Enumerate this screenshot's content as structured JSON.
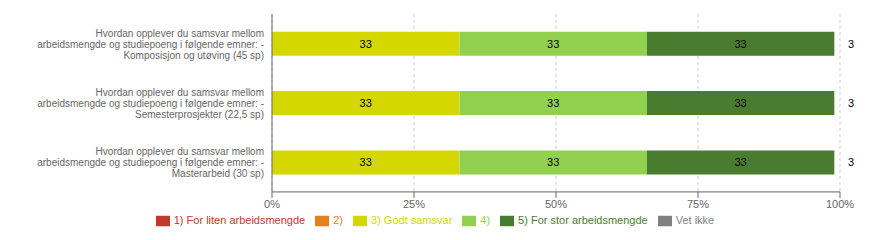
{
  "chart_data": {
    "type": "bar",
    "orientation": "horizontal",
    "stacked": true,
    "data_labels": true,
    "grid": true,
    "legend": "bottom",
    "categories": [
      "Hvordan opplever du samsvar mellom\narbeidsmengde og studiepoeng i følgende emner: -\nKomposisjon og utøving (45 sp)",
      "Hvordan opplever du samsvar mellom\narbeidsmengde og studiepoeng i følgende emner: -\nSemesterprosjekter (22,5 sp)",
      "Hvordan opplever du samsvar mellom\narbeidsmengde og studiepoeng i følgende emner: -\nMasterarbeid (30 sp)"
    ],
    "series": [
      {
        "name": "1) For liten arbeidsmengde",
        "color": "#c0392b",
        "values": [
          0,
          0,
          0
        ]
      },
      {
        "name": "2)",
        "color": "#e67e22",
        "values": [
          0,
          0,
          0
        ]
      },
      {
        "name": "3) Godt samsvar",
        "color": "#d4d800",
        "values": [
          33,
          33,
          33
        ]
      },
      {
        "name": "4)",
        "color": "#92d050",
        "values": [
          33,
          33,
          33
        ]
      },
      {
        "name": "5) For stor arbeidsmengde",
        "color": "#4a7c2f",
        "values": [
          33,
          33,
          33
        ]
      },
      {
        "name": "Vet ikke",
        "color": "#808080",
        "values": [
          0,
          0,
          0
        ]
      }
    ],
    "n_values": [
      3,
      3,
      3
    ],
    "xlim": [
      0,
      100
    ],
    "xticks": [
      {
        "value": 0,
        "label": "0%"
      },
      {
        "value": 25,
        "label": "25%"
      },
      {
        "value": 50,
        "label": "50%"
      },
      {
        "value": 75,
        "label": "75%"
      },
      {
        "value": 100,
        "label": "100%"
      }
    ]
  }
}
